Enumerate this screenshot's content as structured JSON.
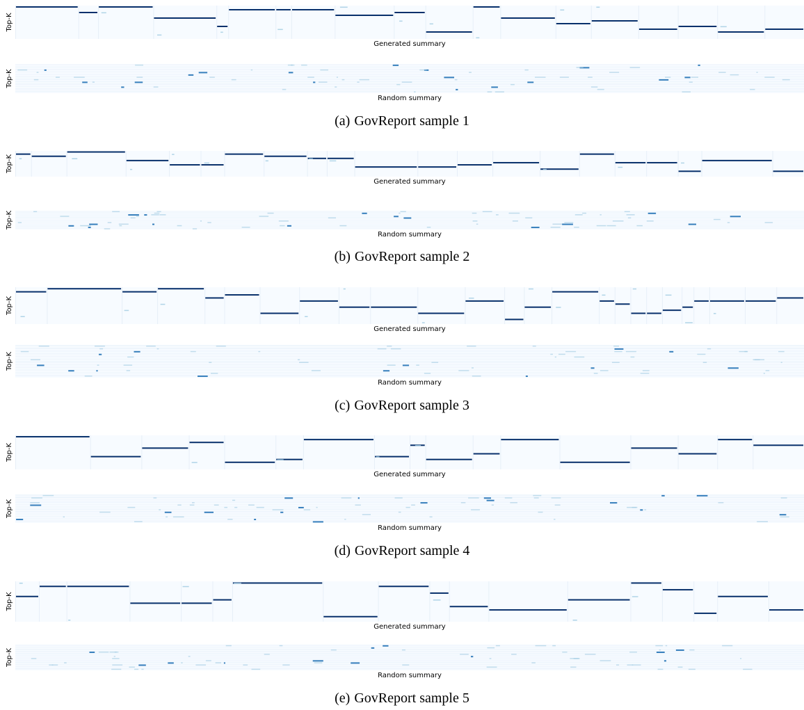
{
  "colors": {
    "background": "#f7fbff",
    "low": "#eaf2fb",
    "mid": "#9ecae1",
    "high": "#08306b"
  },
  "panels": [
    {
      "label": "(a)",
      "caption": "GovReport sample 1"
    },
    {
      "label": "(b)",
      "caption": "GovReport sample 2"
    },
    {
      "label": "(c)",
      "caption": "GovReport sample 3"
    },
    {
      "label": "(d)",
      "caption": "GovReport sample 4"
    },
    {
      "label": "(e)",
      "caption": "GovReport sample 5"
    }
  ],
  "chart_data": [
    {
      "type": "heatmap",
      "panel": "(a)",
      "ylabel": "Top-K",
      "xlabel": "Generated summary",
      "segments": [
        {
          "start": 0,
          "end": 8,
          "k": 0
        },
        {
          "start": 8,
          "end": 10.5,
          "k": 2
        },
        {
          "start": 10.5,
          "end": 17.5,
          "k": 0
        },
        {
          "start": 17.5,
          "end": 25.5,
          "k": 4
        },
        {
          "start": 25.5,
          "end": 27,
          "k": 7
        },
        {
          "start": 27,
          "end": 33,
          "k": 1
        },
        {
          "start": 33,
          "end": 35,
          "k": 1
        },
        {
          "start": 35,
          "end": 40.5,
          "k": 1
        },
        {
          "start": 40.5,
          "end": 48,
          "k": 3
        },
        {
          "start": 48,
          "end": 52,
          "k": 2
        },
        {
          "start": 52,
          "end": 58,
          "k": 9
        },
        {
          "start": 58,
          "end": 61.5,
          "k": 0
        },
        {
          "start": 61.5,
          "end": 68.5,
          "k": 4
        },
        {
          "start": 68.5,
          "end": 73,
          "k": 6
        },
        {
          "start": 73,
          "end": 79,
          "k": 5
        },
        {
          "start": 79,
          "end": 84,
          "k": 8
        },
        {
          "start": 84,
          "end": 89,
          "k": 7
        },
        {
          "start": 89,
          "end": 95,
          "k": 9
        },
        {
          "start": 95,
          "end": 100,
          "k": 8
        }
      ]
    },
    {
      "type": "heatmap",
      "panel": "(a)",
      "ylabel": "Top-K",
      "xlabel": "Random summary"
    },
    {
      "type": "heatmap",
      "panel": "(b)",
      "ylabel": "Top-K",
      "xlabel": "Generated summary",
      "segments": [
        {
          "start": 0,
          "end": 2,
          "k": 1
        },
        {
          "start": 2,
          "end": 6.5,
          "k": 2
        },
        {
          "start": 6.5,
          "end": 14,
          "k": 0
        },
        {
          "start": 14,
          "end": 19.5,
          "k": 4
        },
        {
          "start": 19.5,
          "end": 23.5,
          "k": 6
        },
        {
          "start": 23.5,
          "end": 26.5,
          "k": 6
        },
        {
          "start": 26.5,
          "end": 31.5,
          "k": 1
        },
        {
          "start": 31.5,
          "end": 37,
          "k": 2
        },
        {
          "start": 37,
          "end": 39.5,
          "k": 3
        },
        {
          "start": 39.5,
          "end": 43,
          "k": 3
        },
        {
          "start": 43,
          "end": 51,
          "k": 7
        },
        {
          "start": 51,
          "end": 56,
          "k": 7
        },
        {
          "start": 56,
          "end": 60.5,
          "k": 6
        },
        {
          "start": 60.5,
          "end": 66.5,
          "k": 5
        },
        {
          "start": 66.5,
          "end": 71.5,
          "k": 8
        },
        {
          "start": 71.5,
          "end": 76,
          "k": 1
        },
        {
          "start": 76,
          "end": 80,
          "k": 5
        },
        {
          "start": 80,
          "end": 84,
          "k": 5
        },
        {
          "start": 84,
          "end": 87,
          "k": 9
        },
        {
          "start": 87,
          "end": 96,
          "k": 4
        },
        {
          "start": 96,
          "end": 100,
          "k": 9
        }
      ]
    },
    {
      "type": "heatmap",
      "panel": "(b)",
      "ylabel": "Top-K",
      "xlabel": "Random summary"
    },
    {
      "type": "heatmap",
      "panel": "(c)",
      "ylabel": "Top-K",
      "xlabel": "Generated summary",
      "segments": [
        {
          "start": 0,
          "end": 4,
          "k": 1
        },
        {
          "start": 4,
          "end": 13.5,
          "k": 0
        },
        {
          "start": 13.5,
          "end": 18,
          "k": 1
        },
        {
          "start": 18,
          "end": 24,
          "k": 0
        },
        {
          "start": 24,
          "end": 26.5,
          "k": 3
        },
        {
          "start": 26.5,
          "end": 31,
          "k": 2
        },
        {
          "start": 31,
          "end": 36,
          "k": 8
        },
        {
          "start": 36,
          "end": 41,
          "k": 4
        },
        {
          "start": 41,
          "end": 45,
          "k": 6
        },
        {
          "start": 45,
          "end": 51,
          "k": 6
        },
        {
          "start": 51,
          "end": 57,
          "k": 8
        },
        {
          "start": 57,
          "end": 62,
          "k": 4
        },
        {
          "start": 62,
          "end": 64.5,
          "k": 10
        },
        {
          "start": 64.5,
          "end": 68,
          "k": 6
        },
        {
          "start": 68,
          "end": 74,
          "k": 1
        },
        {
          "start": 74,
          "end": 76,
          "k": 4
        },
        {
          "start": 76,
          "end": 78,
          "k": 5
        },
        {
          "start": 78,
          "end": 80,
          "k": 8
        },
        {
          "start": 80,
          "end": 82,
          "k": 8
        },
        {
          "start": 82,
          "end": 84.5,
          "k": 7
        },
        {
          "start": 84.5,
          "end": 86,
          "k": 6
        },
        {
          "start": 86,
          "end": 88,
          "k": 4
        },
        {
          "start": 88,
          "end": 92.5,
          "k": 4
        },
        {
          "start": 92.5,
          "end": 96.5,
          "k": 4
        },
        {
          "start": 96.5,
          "end": 100,
          "k": 3
        }
      ]
    },
    {
      "type": "heatmap",
      "panel": "(c)",
      "ylabel": "Top-K",
      "xlabel": "Random summary"
    },
    {
      "type": "heatmap",
      "panel": "(d)",
      "ylabel": "Top-K",
      "xlabel": "Generated summary",
      "segments": [
        {
          "start": 0,
          "end": 9.5,
          "k": 0
        },
        {
          "start": 9.5,
          "end": 16,
          "k": 7
        },
        {
          "start": 16,
          "end": 22,
          "k": 4
        },
        {
          "start": 22,
          "end": 26.5,
          "k": 2
        },
        {
          "start": 26.5,
          "end": 33,
          "k": 9
        },
        {
          "start": 33,
          "end": 36.5,
          "k": 8
        },
        {
          "start": 36.5,
          "end": 45.5,
          "k": 1
        },
        {
          "start": 45.5,
          "end": 50,
          "k": 7
        },
        {
          "start": 50,
          "end": 52,
          "k": 3
        },
        {
          "start": 52,
          "end": 58,
          "k": 8
        },
        {
          "start": 58,
          "end": 61.5,
          "k": 6
        },
        {
          "start": 61.5,
          "end": 69,
          "k": 1
        },
        {
          "start": 69,
          "end": 78,
          "k": 9
        },
        {
          "start": 78,
          "end": 84,
          "k": 4
        },
        {
          "start": 84,
          "end": 89,
          "k": 6
        },
        {
          "start": 89,
          "end": 93.5,
          "k": 1
        },
        {
          "start": 93.5,
          "end": 100,
          "k": 3
        }
      ]
    },
    {
      "type": "heatmap",
      "panel": "(d)",
      "ylabel": "Top-K",
      "xlabel": "Random summary"
    },
    {
      "type": "heatmap",
      "panel": "(e)",
      "ylabel": "Top-K",
      "xlabel": "Generated summary",
      "segments": [
        {
          "start": 0,
          "end": 3,
          "k": 4
        },
        {
          "start": 3,
          "end": 6.5,
          "k": 1
        },
        {
          "start": 6.5,
          "end": 14.5,
          "k": 1
        },
        {
          "start": 14.5,
          "end": 21,
          "k": 6
        },
        {
          "start": 21,
          "end": 25,
          "k": 6
        },
        {
          "start": 25,
          "end": 27.5,
          "k": 5
        },
        {
          "start": 27.5,
          "end": 39,
          "k": 0
        },
        {
          "start": 39,
          "end": 46,
          "k": 10
        },
        {
          "start": 46,
          "end": 52.5,
          "k": 1
        },
        {
          "start": 52.5,
          "end": 55,
          "k": 3
        },
        {
          "start": 55,
          "end": 60,
          "k": 7
        },
        {
          "start": 60,
          "end": 70,
          "k": 8
        },
        {
          "start": 70,
          "end": 78,
          "k": 5
        },
        {
          "start": 78,
          "end": 82,
          "k": 0
        },
        {
          "start": 82,
          "end": 86,
          "k": 2
        },
        {
          "start": 86,
          "end": 89,
          "k": 9
        },
        {
          "start": 89,
          "end": 95.5,
          "k": 4
        },
        {
          "start": 95.5,
          "end": 100,
          "k": 8
        }
      ]
    },
    {
      "type": "heatmap",
      "panel": "(e)",
      "ylabel": "Top-K",
      "xlabel": "Random summary"
    }
  ]
}
